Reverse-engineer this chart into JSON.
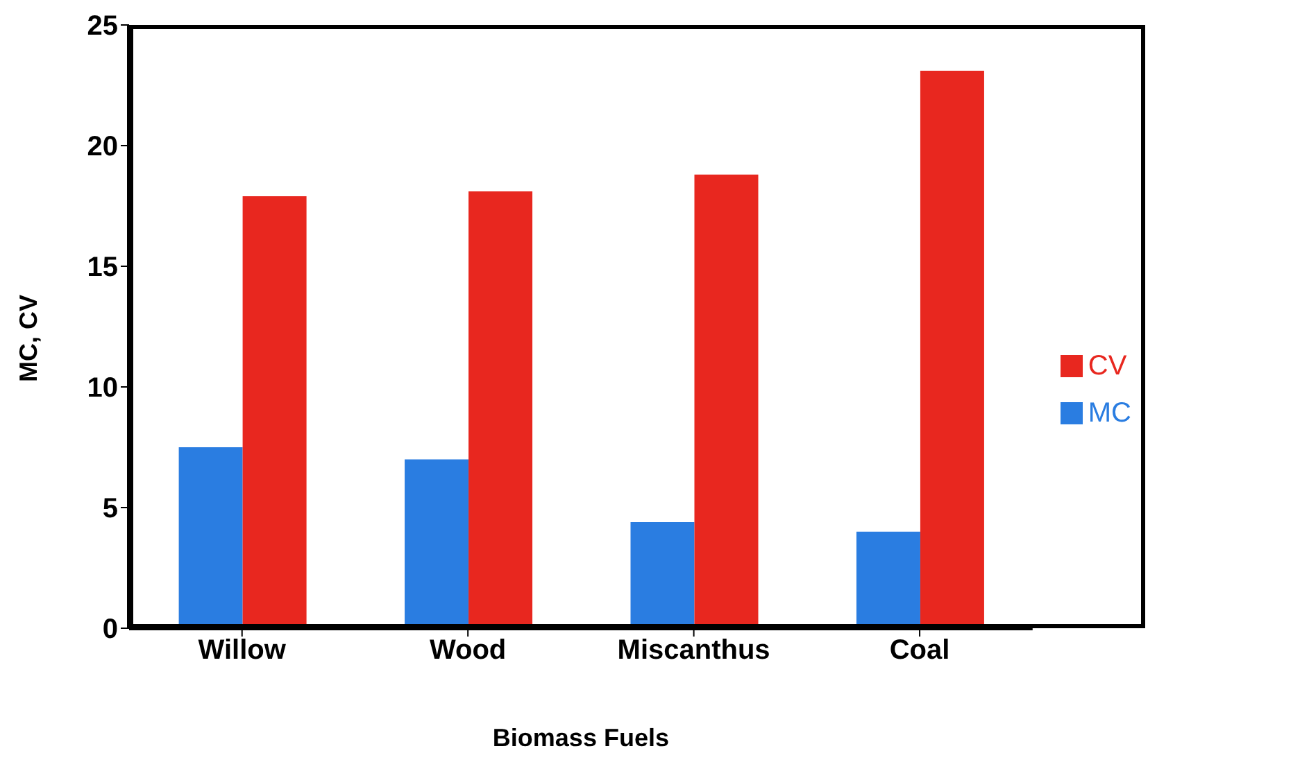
{
  "chart_data": {
    "type": "bar",
    "xlabel": "Biomass Fuels",
    "ylabel": "MC,  CV",
    "categories": [
      "Willow",
      "Wood",
      "Miscanthus",
      "Coal"
    ],
    "series": [
      {
        "name": "MC",
        "color": "#2a7de1",
        "values": [
          7.5,
          7.0,
          4.4,
          4.0
        ]
      },
      {
        "name": "CV",
        "color": "#e8271f",
        "values": [
          17.9,
          18.1,
          18.8,
          23.1
        ]
      }
    ],
    "ylim": [
      0,
      25
    ],
    "yticks": [
      0,
      5,
      10,
      15,
      20,
      25
    ],
    "grid": false,
    "legend": "right"
  }
}
